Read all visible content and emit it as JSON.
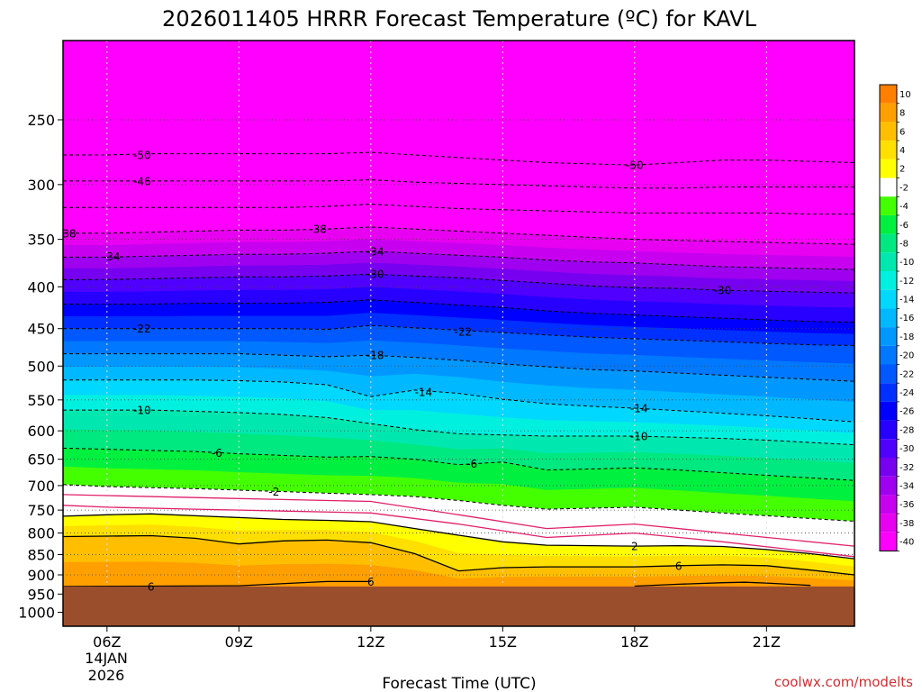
{
  "chart_data": {
    "type": "heatmap",
    "title": "2026011405 HRRR Forecast Temperature (ºC) for KAVL",
    "xlabel": "Forecast Time (UTC)",
    "ylabel": "",
    "credit": "coolwx.com/modelts",
    "x_ticks": [
      {
        "hour": 6,
        "label": "06Z"
      },
      {
        "hour": 9,
        "label": "09Z"
      },
      {
        "hour": 12,
        "label": "12Z"
      },
      {
        "hour": 15,
        "label": "15Z"
      },
      {
        "hour": 18,
        "label": "18Z"
      },
      {
        "hour": 21,
        "label": "21Z"
      }
    ],
    "x_date_label": [
      "14JAN",
      "2026"
    ],
    "xlim_hours": [
      5.0,
      23.0
    ],
    "y_ticks": [
      250,
      300,
      350,
      400,
      450,
      500,
      550,
      600,
      650,
      700,
      750,
      800,
      850,
      900,
      950,
      1000
    ],
    "ylim_hpa": [
      200,
      1040
    ],
    "surface_pressure_hpa": 930,
    "colorbar": {
      "labels": [
        "10",
        "8",
        "6",
        "4",
        "2",
        "-2",
        "-4",
        "-6",
        "-8",
        "-10",
        "-12",
        "-14",
        "-16",
        "-18",
        "-20",
        "-22",
        "-24",
        "-26",
        "-28",
        "-30",
        "-32",
        "-34",
        "-36",
        "-38",
        "-40"
      ],
      "colors": [
        "#ff7f00",
        "#ff9f00",
        "#ffbf00",
        "#ffdf00",
        "#ffff00",
        "#ffffff",
        "#44ff00",
        "#00f040",
        "#00e880",
        "#00e8b0",
        "#00f0e0",
        "#00d8ff",
        "#00b8ff",
        "#0098ff",
        "#0078ff",
        "#0058ff",
        "#0030ff",
        "#0000ff",
        "#2800ff",
        "#5000ff",
        "#7800f0",
        "#a000f0",
        "#c800f0",
        "#e800f0",
        "#ff00ff"
      ]
    },
    "hours": [
      5,
      6,
      7,
      8,
      9,
      10,
      11,
      12,
      13,
      14,
      15,
      16,
      17,
      18,
      19,
      20,
      21,
      22,
      23
    ],
    "isotherms": [
      {
        "temp": -50,
        "p": [
          276,
          276,
          275,
          275,
          275,
          275,
          275,
          274,
          276,
          278,
          280,
          282,
          283,
          284,
          282,
          280,
          280,
          281,
          282
        ]
      },
      {
        "temp": -46,
        "p": [
          297,
          297,
          297,
          297,
          297,
          297,
          297,
          296,
          298,
          299,
          300,
          301,
          302,
          303,
          303,
          302,
          302,
          302,
          302
        ]
      },
      {
        "temp": -42,
        "p": [
          320,
          320,
          320,
          320,
          320,
          320,
          319,
          317,
          319,
          321,
          322,
          323,
          324,
          325,
          325,
          325,
          325,
          326,
          326
        ]
      },
      {
        "temp": -38,
        "p": [
          344,
          344,
          343,
          342,
          341,
          341,
          340,
          338,
          340,
          342,
          344,
          346,
          348,
          350,
          351,
          352,
          353,
          354,
          355
        ]
      },
      {
        "temp": -34,
        "p": [
          368,
          368,
          367,
          366,
          365,
          365,
          364,
          362,
          364,
          366,
          368,
          371,
          373,
          374,
          376,
          378,
          379,
          380,
          381
        ]
      },
      {
        "temp": -30,
        "p": [
          392,
          392,
          391,
          390,
          389,
          389,
          388,
          386,
          388,
          390,
          393,
          396,
          399,
          401,
          402,
          404,
          405,
          406,
          407
        ]
      },
      {
        "temp": -26,
        "p": [
          420,
          420,
          420,
          419,
          419,
          419,
          418,
          415,
          418,
          421,
          424,
          428,
          431,
          433,
          435,
          437,
          439,
          441,
          442
        ]
      },
      {
        "temp": -22,
        "p": [
          450,
          450,
          450,
          450,
          450,
          450,
          451,
          446,
          449,
          452,
          455,
          458,
          461,
          463,
          465,
          467,
          469,
          471,
          472
        ]
      },
      {
        "temp": -18,
        "p": [
          483,
          483,
          483,
          483,
          483,
          485,
          487,
          485,
          488,
          492,
          497,
          501,
          505,
          507,
          510,
          513,
          516,
          519,
          522
        ]
      },
      {
        "temp": -14,
        "p": [
          520,
          520,
          520,
          520,
          521,
          523,
          527,
          545,
          535,
          540,
          549,
          556,
          560,
          563,
          567,
          571,
          575,
          580,
          585
        ]
      },
      {
        "temp": -10,
        "p": [
          566,
          566,
          566,
          568,
          570,
          573,
          578,
          588,
          598,
          605,
          607,
          609,
          609,
          609,
          611,
          613,
          616,
          620,
          624
        ]
      },
      {
        "temp": -6,
        "p": [
          630,
          632,
          634,
          636,
          640,
          643,
          646,
          645,
          650,
          660,
          655,
          670,
          668,
          666,
          670,
          675,
          680,
          685,
          690
        ]
      },
      {
        "temp": -2,
        "p": [
          698,
          702,
          704,
          706,
          709,
          712,
          715,
          718,
          722,
          730,
          740,
          748,
          746,
          744,
          750,
          756,
          762,
          768,
          774
        ]
      },
      {
        "temp": 2,
        "p": [
          763,
          760,
          758,
          762,
          766,
          770,
          772,
          775,
          790,
          805,
          820,
          828,
          829,
          830,
          829,
          831,
          838,
          848,
          860
        ]
      },
      {
        "temp": 6,
        "p": [
          808,
          807,
          806,
          812,
          825,
          818,
          816,
          822,
          848,
          890,
          882,
          880,
          880,
          880,
          877,
          875,
          877,
          888,
          900
        ]
      }
    ],
    "near_surface_6C_line": {
      "temp": 6,
      "hours": [
        5,
        7,
        9,
        11,
        12
      ],
      "p": [
        930,
        929,
        928,
        917,
        917
      ]
    },
    "near_surface_6C_line_2": {
      "temp": 6,
      "hours": [
        18,
        19,
        20,
        20.5,
        21,
        22
      ],
      "p": [
        929,
        924,
        920,
        919,
        921,
        927
      ]
    },
    "zero_line_top": {
      "hours": [
        5,
        6,
        8,
        10,
        12,
        14,
        16,
        18,
        20,
        23
      ],
      "p": [
        718,
        720,
        724,
        728,
        732,
        760,
        790,
        780,
        800,
        830
      ]
    },
    "zero_line_bottom": {
      "hours": [
        5,
        6,
        8,
        10,
        12,
        14,
        16,
        18,
        20,
        23
      ],
      "p": [
        740,
        744,
        748,
        752,
        756,
        780,
        810,
        800,
        820,
        855
      ]
    },
    "isotherm_labels": [
      {
        "text": "-50",
        "hour": 6.8,
        "p": 276
      },
      {
        "text": "-50",
        "hour": 18.0,
        "p": 284
      },
      {
        "text": "-46",
        "hour": 6.8,
        "p": 297
      },
      {
        "text": "-38",
        "hour": 5.1,
        "p": 344
      },
      {
        "text": "-38",
        "hour": 10.8,
        "p": 340
      },
      {
        "text": "-34",
        "hour": 6.1,
        "p": 367
      },
      {
        "text": "-34",
        "hour": 12.1,
        "p": 362
      },
      {
        "text": "-30",
        "hour": 12.1,
        "p": 386
      },
      {
        "text": "-30",
        "hour": 20.0,
        "p": 404
      },
      {
        "text": "-22",
        "hour": 6.8,
        "p": 450
      },
      {
        "text": "-22",
        "hour": 14.1,
        "p": 454
      },
      {
        "text": "-18",
        "hour": 12.1,
        "p": 485
      },
      {
        "text": "-14",
        "hour": 13.2,
        "p": 538
      },
      {
        "text": "-14",
        "hour": 18.1,
        "p": 563
      },
      {
        "text": "-10",
        "hour": 6.8,
        "p": 566
      },
      {
        "text": "-10",
        "hour": 18.1,
        "p": 609
      },
      {
        "text": "-6",
        "hour": 8.5,
        "p": 638
      },
      {
        "text": "-6",
        "hour": 14.3,
        "p": 658
      },
      {
        "text": "-2",
        "hour": 9.8,
        "p": 712
      },
      {
        "text": "2",
        "hour": 18.0,
        "p": 830
      },
      {
        "text": "6",
        "hour": 12.0,
        "p": 917
      },
      {
        "text": "6",
        "hour": 7.0,
        "p": 930
      },
      {
        "text": "6",
        "hour": 19.0,
        "p": 878
      }
    ]
  }
}
